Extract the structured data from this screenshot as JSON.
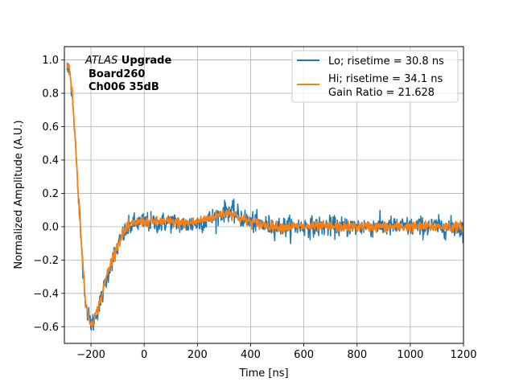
{
  "chart_data": {
    "type": "line",
    "title": "",
    "xlabel": "Time [ns]",
    "ylabel": "Normalized Amplitude (A.U.)",
    "xlim": [
      -300,
      1200
    ],
    "ylim": [
      -0.7,
      1.08
    ],
    "xticks": [
      -200,
      0,
      200,
      400,
      600,
      800,
      1000,
      1200
    ],
    "yticks": [
      -0.6,
      -0.4,
      -0.2,
      0.0,
      0.2,
      0.4,
      0.6,
      0.8,
      1.0
    ],
    "xtick_labels": [
      "−200",
      "0",
      "200",
      "400",
      "600",
      "800",
      "1000",
      "1200"
    ],
    "ytick_labels": [
      "−0.6",
      "−0.4",
      "−0.2",
      "0.0",
      "0.2",
      "0.4",
      "0.6",
      "0.8",
      "1.0"
    ],
    "grid": true,
    "legend_position": "top-right",
    "annotation": {
      "line1_italic": "ATLAS",
      "line1_bold": " Upgrade",
      "line2": "Board260",
      "line3": "Ch006 35dB"
    },
    "series": [
      {
        "name": "Lo; risetime = 30.8 ns",
        "color": "#1f77b4",
        "noise": 0.03,
        "x": [
          -290,
          -280,
          -270,
          -260,
          -250,
          -240,
          -230,
          -220,
          -210,
          -200,
          -190,
          -180,
          -170,
          -160,
          -150,
          -140,
          -130,
          -120,
          -100,
          -80,
          -60,
          -40,
          -20,
          0,
          50,
          100,
          150,
          200,
          240,
          280,
          300,
          320,
          340,
          360,
          400,
          450,
          500,
          600,
          700,
          800,
          900,
          1000,
          1100,
          1200
        ],
        "y": [
          0.95,
          0.92,
          0.8,
          0.55,
          0.25,
          0.0,
          -0.25,
          -0.45,
          -0.54,
          -0.58,
          -0.57,
          -0.52,
          -0.48,
          -0.43,
          -0.36,
          -0.3,
          -0.25,
          -0.2,
          -0.12,
          -0.05,
          -0.01,
          0.02,
          0.02,
          0.03,
          0.02,
          0.03,
          0.01,
          0.02,
          0.04,
          0.07,
          0.09,
          0.1,
          0.08,
          0.06,
          0.03,
          0.01,
          0.0,
          0.0,
          0.0,
          0.0,
          0.0,
          0.0,
          0.0,
          -0.01
        ]
      },
      {
        "name": "Hi; risetime = 34.1 ns\n Gain Ratio = 21.628",
        "color": "#ff7f0e",
        "noise": 0.015,
        "x": [
          -290,
          -280,
          -270,
          -260,
          -250,
          -240,
          -230,
          -220,
          -210,
          -200,
          -190,
          -180,
          -170,
          -160,
          -150,
          -140,
          -130,
          -120,
          -100,
          -80,
          -60,
          -40,
          -20,
          0,
          50,
          100,
          150,
          200,
          240,
          280,
          300,
          320,
          340,
          360,
          400,
          450,
          500,
          600,
          700,
          800,
          900,
          1000,
          1100,
          1200
        ],
        "y": [
          0.98,
          0.93,
          0.8,
          0.55,
          0.25,
          0.0,
          -0.25,
          -0.45,
          -0.55,
          -0.58,
          -0.56,
          -0.52,
          -0.47,
          -0.42,
          -0.35,
          -0.29,
          -0.24,
          -0.19,
          -0.11,
          -0.04,
          0.0,
          0.02,
          0.03,
          0.03,
          0.03,
          0.03,
          0.02,
          0.03,
          0.05,
          0.07,
          0.08,
          0.09,
          0.07,
          0.05,
          0.03,
          0.01,
          0.0,
          0.0,
          0.0,
          0.0,
          0.0,
          0.0,
          0.0,
          0.0
        ]
      }
    ]
  }
}
